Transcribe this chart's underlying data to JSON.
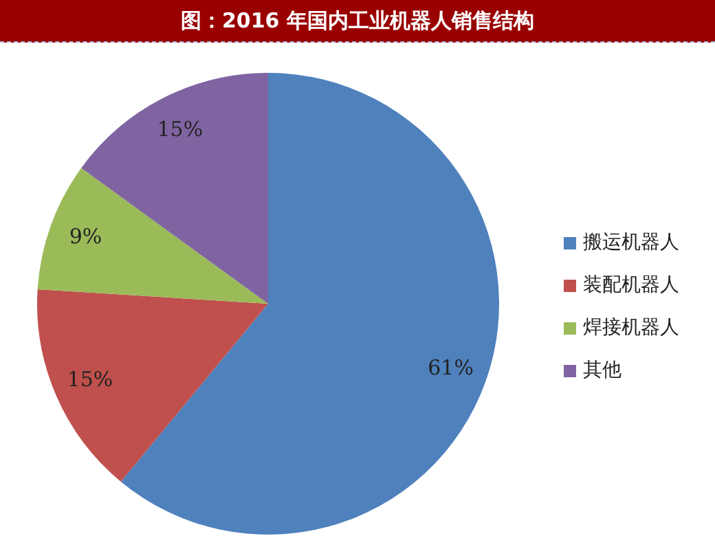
{
  "chart_data": {
    "type": "pie",
    "title": "图：2016 年国内工业机器人销售结构",
    "categories": [
      "搬运机器人",
      "装配机器人",
      "焊接机器人",
      "其他"
    ],
    "values": [
      61,
      15,
      9,
      15
    ],
    "colors": [
      "#4f81bd",
      "#c0504d",
      "#9bbb59",
      "#8064a2"
    ],
    "value_labels": [
      "61%",
      "15%",
      "9%",
      "15%"
    ],
    "legend": "right"
  }
}
